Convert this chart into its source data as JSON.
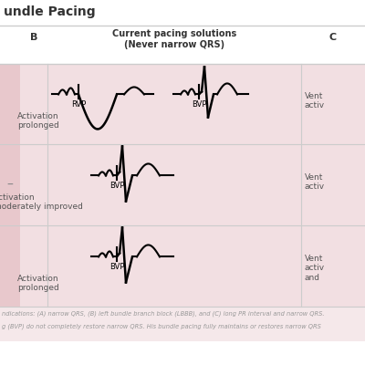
{
  "title": "undle Pacing",
  "col_b_label": "B",
  "col_current_label": "Current pacing solutions\n(Never narrow QRS)",
  "col_c_label": "C",
  "row1_label": "Activation\nprolonged",
  "row2_label": "Activation\nmoderately improved",
  "row3_label": "Activation\nprolonged",
  "col_c_row1": "Vent\nactiv",
  "col_c_row2": "Vent\nactiv",
  "col_c_row3": "Vent\nactiv\nand",
  "rvp_label": "RVP",
  "bvp_label": "BVP",
  "bg_pink": "#f2dfe2",
  "bg_white": "#ffffff",
  "left_col_pink": "#e8c8cc",
  "caption_bg": "#f5e8ea",
  "caption_color": "#999999",
  "title_color": "#333333",
  "header_color": "#333333",
  "label_color": "#555555",
  "line_color": "#aaaaaa",
  "caption_line1": "ndications: (A) narrow QRS, (B) left bundle branch block (LBBB), and (C) long PR interval and narrow QRS.",
  "caption_line2": "g (BVP) do not completely restore narrow QRS. His bundle pacing fully maintains or restores narrow QRS"
}
